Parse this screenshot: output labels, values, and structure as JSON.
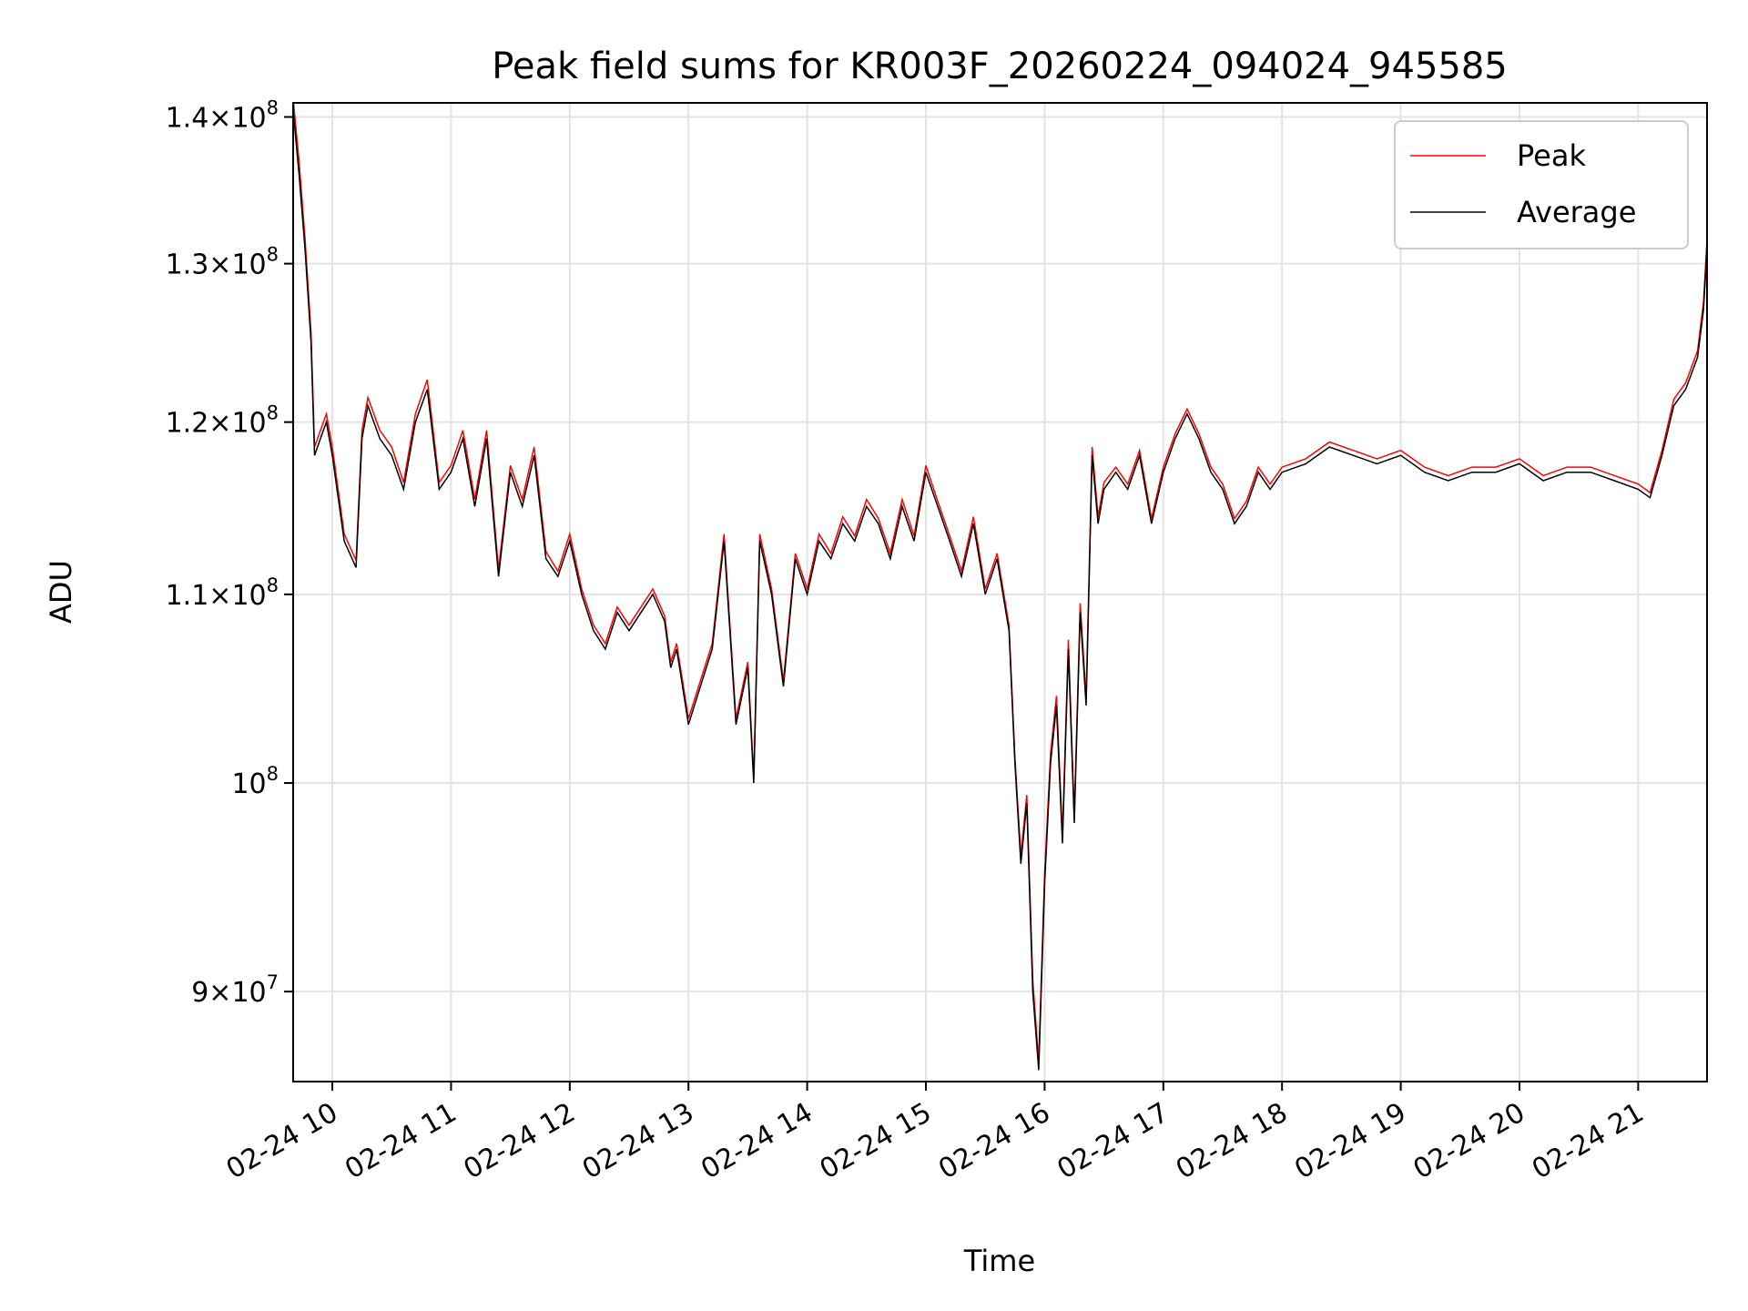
{
  "chart_data": {
    "type": "line",
    "title": "Peak field sums for KR003F_20260224_094024_945585",
    "xlabel": "Time",
    "ylabel": "ADU",
    "yscale": "log",
    "xlim": [
      9.67,
      21.58
    ],
    "ylim": [
      86000000,
      141000000
    ],
    "grid": true,
    "legend_position": "top-right",
    "x_ticks": [
      {
        "value": 10,
        "label": "02-24 10"
      },
      {
        "value": 11,
        "label": "02-24 11"
      },
      {
        "value": 12,
        "label": "02-24 12"
      },
      {
        "value": 13,
        "label": "02-24 13"
      },
      {
        "value": 14,
        "label": "02-24 14"
      },
      {
        "value": 15,
        "label": "02-24 15"
      },
      {
        "value": 16,
        "label": "02-24 16"
      },
      {
        "value": 17,
        "label": "02-24 17"
      },
      {
        "value": 18,
        "label": "02-24 18"
      },
      {
        "value": 19,
        "label": "02-24 19"
      },
      {
        "value": 20,
        "label": "02-24 20"
      },
      {
        "value": 21,
        "label": "02-24 21"
      }
    ],
    "y_ticks": [
      {
        "value": 90000000,
        "mant": "9",
        "exp": "7"
      },
      {
        "value": 100000000,
        "mant": "",
        "exp": "8"
      },
      {
        "value": 110000000,
        "mant": "1.1",
        "exp": "8"
      },
      {
        "value": 120000000,
        "mant": "1.2",
        "exp": "8"
      },
      {
        "value": 130000000,
        "mant": "1.3",
        "exp": "8"
      },
      {
        "value": 140000000,
        "mant": "1.4",
        "exp": "8"
      }
    ],
    "series": [
      {
        "name": "Peak",
        "color": "#ff0000"
      },
      {
        "name": "Average",
        "color": "#000000"
      }
    ],
    "x_hours": [
      9.67,
      9.72,
      9.77,
      9.82,
      9.85,
      9.9,
      9.95,
      10.0,
      10.1,
      10.2,
      10.25,
      10.3,
      10.4,
      10.5,
      10.6,
      10.7,
      10.8,
      10.9,
      11.0,
      11.1,
      11.2,
      11.3,
      11.4,
      11.5,
      11.6,
      11.7,
      11.8,
      11.9,
      12.0,
      12.1,
      12.2,
      12.3,
      12.4,
      12.5,
      12.6,
      12.7,
      12.8,
      12.85,
      12.9,
      12.95,
      13.0,
      13.1,
      13.2,
      13.3,
      13.4,
      13.5,
      13.55,
      13.6,
      13.7,
      13.8,
      13.9,
      14.0,
      14.1,
      14.2,
      14.3,
      14.4,
      14.5,
      14.6,
      14.7,
      14.8,
      14.9,
      15.0,
      15.1,
      15.2,
      15.3,
      15.4,
      15.5,
      15.6,
      15.7,
      15.75,
      15.8,
      15.85,
      15.9,
      15.95,
      16.0,
      16.05,
      16.1,
      16.15,
      16.2,
      16.25,
      16.3,
      16.35,
      16.4,
      16.45,
      16.5,
      16.6,
      16.7,
      16.8,
      16.9,
      17.0,
      17.1,
      17.2,
      17.3,
      17.4,
      17.5,
      17.6,
      17.7,
      17.8,
      17.9,
      18.0,
      18.2,
      18.4,
      18.6,
      18.8,
      19.0,
      19.2,
      19.4,
      19.6,
      19.8,
      20.0,
      20.2,
      20.4,
      20.6,
      20.8,
      21.0,
      21.1,
      21.2,
      21.3,
      21.4,
      21.5,
      21.55,
      21.58
    ],
    "average_values": [
      140500000,
      136000000,
      131000000,
      125000000,
      118000000,
      119000000,
      120000000,
      118000000,
      113000000,
      111500000,
      119000000,
      121000000,
      119000000,
      118000000,
      116000000,
      120000000,
      122000000,
      116000000,
      117000000,
      119000000,
      115000000,
      119000000,
      111000000,
      117000000,
      115000000,
      118000000,
      112000000,
      111000000,
      113000000,
      110000000,
      108000000,
      107000000,
      109000000,
      108000000,
      109000000,
      110000000,
      108500000,
      106000000,
      107000000,
      105000000,
      103000000,
      105000000,
      107000000,
      113000000,
      103000000,
      106000000,
      100000000,
      113000000,
      110000000,
      105000000,
      112000000,
      110000000,
      113000000,
      112000000,
      114000000,
      113000000,
      115000000,
      114000000,
      112000000,
      115000000,
      113000000,
      117000000,
      115000000,
      113000000,
      111000000,
      114000000,
      110000000,
      112000000,
      108000000,
      101000000,
      96000000,
      99000000,
      90000000,
      86500000,
      95000000,
      101000000,
      104000000,
      97000000,
      107000000,
      98000000,
      109000000,
      104000000,
      118000000,
      114000000,
      116000000,
      117000000,
      116000000,
      118000000,
      114000000,
      117000000,
      119000000,
      120500000,
      119000000,
      117000000,
      116000000,
      114000000,
      115000000,
      117000000,
      116000000,
      117000000,
      117500000,
      118500000,
      118000000,
      117500000,
      118000000,
      117000000,
      116500000,
      117000000,
      117000000,
      117500000,
      116500000,
      117000000,
      117000000,
      116500000,
      116000000,
      115500000,
      118000000,
      121000000,
      122000000,
      124000000,
      127000000,
      131000000
    ],
    "peak_offsets": [
      800000,
      900000,
      700000,
      600000,
      500000,
      500000,
      500000,
      500000,
      400000,
      400000,
      500000,
      500000,
      500000,
      500000,
      400000,
      500000,
      600000,
      400000,
      400000,
      500000,
      400000,
      500000,
      400000,
      400000,
      400000,
      500000,
      400000,
      300000,
      400000,
      300000,
      300000,
      300000,
      300000,
      300000,
      300000,
      300000,
      300000,
      300000,
      300000,
      300000,
      300000,
      300000,
      300000,
      400000,
      300000,
      300000,
      300000,
      400000,
      300000,
      300000,
      300000,
      300000,
      400000,
      300000,
      400000,
      300000,
      400000,
      300000,
      300000,
      400000,
      300000,
      400000,
      300000,
      300000,
      300000,
      400000,
      300000,
      300000,
      300000,
      300000,
      400000,
      400000,
      500000,
      400000,
      500000,
      500000,
      500000,
      400000,
      500000,
      400000,
      500000,
      400000,
      500000,
      400000,
      400000,
      300000,
      300000,
      300000,
      300000,
      300000,
      300000,
      300000,
      300000,
      300000,
      300000,
      300000,
      300000,
      300000,
      300000,
      300000,
      300000,
      300000,
      300000,
      300000,
      300000,
      300000,
      300000,
      300000,
      300000,
      300000,
      300000,
      300000,
      300000,
      300000,
      300000,
      300000,
      300000,
      400000,
      400000,
      400000,
      500000,
      600000
    ]
  }
}
